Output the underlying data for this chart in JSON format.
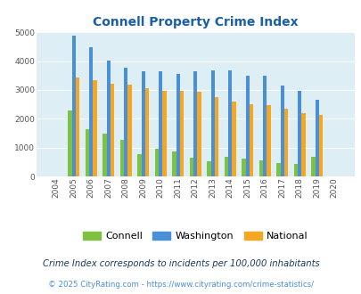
{
  "title": "Connell Property Crime Index",
  "years": [
    2004,
    2005,
    2006,
    2007,
    2008,
    2009,
    2010,
    2011,
    2012,
    2013,
    2014,
    2015,
    2016,
    2017,
    2018,
    2019,
    2020
  ],
  "connell": [
    0,
    2280,
    1630,
    1470,
    1260,
    760,
    960,
    870,
    640,
    540,
    670,
    620,
    560,
    450,
    430,
    670,
    0
  ],
  "washington": [
    0,
    4900,
    4470,
    4020,
    3760,
    3640,
    3650,
    3560,
    3650,
    3680,
    3680,
    3480,
    3490,
    3160,
    2980,
    2650,
    0
  ],
  "national": [
    0,
    3440,
    3330,
    3230,
    3200,
    3060,
    2960,
    2960,
    2940,
    2740,
    2600,
    2490,
    2460,
    2360,
    2210,
    2130,
    0
  ],
  "connell_color": "#7fc241",
  "washington_color": "#4a90d9",
  "national_color": "#f5a623",
  "bg_color": "#deeef5",
  "ylim": [
    0,
    5000
  ],
  "yticks": [
    0,
    1000,
    2000,
    3000,
    4000,
    5000
  ],
  "legend_labels": [
    "Connell",
    "Washington",
    "National"
  ],
  "footnote1": "Crime Index corresponds to incidents per 100,000 inhabitants",
  "footnote2": "© 2025 CityRating.com - https://www.cityrating.com/crime-statistics/",
  "title_color": "#1a5fa8",
  "footnote1_color": "#1a3a5c",
  "footnote2_color": "#4a90d9"
}
